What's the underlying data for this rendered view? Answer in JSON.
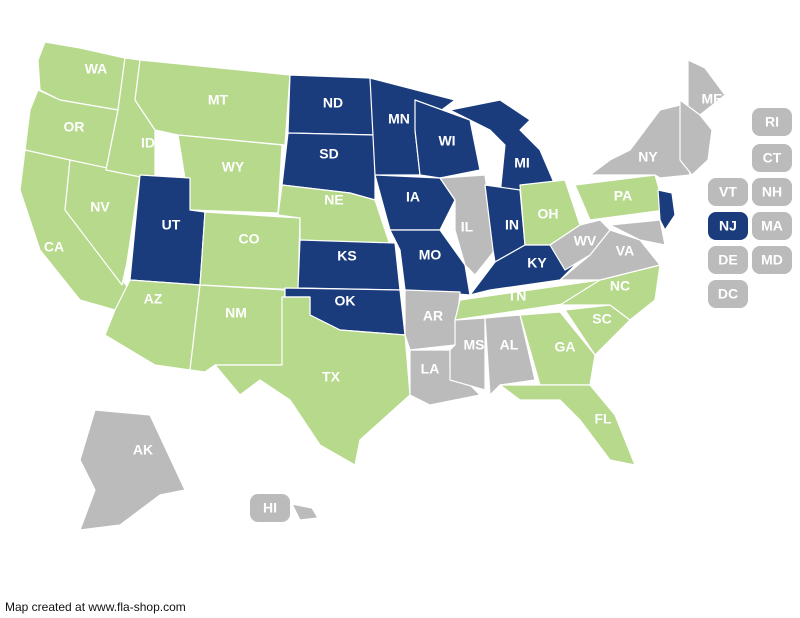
{
  "colors": {
    "blue": "#1a3b7c",
    "green": "#b6d98c",
    "gray": "#bbbbbb"
  },
  "states": [
    {
      "code": "WA",
      "status": "green"
    },
    {
      "code": "OR",
      "status": "green"
    },
    {
      "code": "CA",
      "status": "green"
    },
    {
      "code": "NV",
      "status": "green"
    },
    {
      "code": "ID",
      "status": "green"
    },
    {
      "code": "MT",
      "status": "green"
    },
    {
      "code": "WY",
      "status": "green"
    },
    {
      "code": "UT",
      "status": "blue"
    },
    {
      "code": "AZ",
      "status": "green"
    },
    {
      "code": "CO",
      "status": "green"
    },
    {
      "code": "NM",
      "status": "green"
    },
    {
      "code": "ND",
      "status": "blue"
    },
    {
      "code": "SD",
      "status": "blue"
    },
    {
      "code": "NE",
      "status": "green"
    },
    {
      "code": "KS",
      "status": "blue"
    },
    {
      "code": "OK",
      "status": "blue"
    },
    {
      "code": "TX",
      "status": "green"
    },
    {
      "code": "MN",
      "status": "blue"
    },
    {
      "code": "IA",
      "status": "blue"
    },
    {
      "code": "MO",
      "status": "blue"
    },
    {
      "code": "AR",
      "status": "gray"
    },
    {
      "code": "LA",
      "status": "gray"
    },
    {
      "code": "WI",
      "status": "blue"
    },
    {
      "code": "IL",
      "status": "gray"
    },
    {
      "code": "MI",
      "status": "blue"
    },
    {
      "code": "IN",
      "status": "blue"
    },
    {
      "code": "OH",
      "status": "green"
    },
    {
      "code": "KY",
      "status": "blue"
    },
    {
      "code": "TN",
      "status": "green"
    },
    {
      "code": "MS",
      "status": "gray"
    },
    {
      "code": "AL",
      "status": "gray"
    },
    {
      "code": "GA",
      "status": "green"
    },
    {
      "code": "FL",
      "status": "green"
    },
    {
      "code": "SC",
      "status": "green"
    },
    {
      "code": "NC",
      "status": "green"
    },
    {
      "code": "VA",
      "status": "gray"
    },
    {
      "code": "WV",
      "status": "gray"
    },
    {
      "code": "PA",
      "status": "green"
    },
    {
      "code": "NY",
      "status": "gray"
    },
    {
      "code": "NJ",
      "status": "blue"
    },
    {
      "code": "ME",
      "status": "gray"
    },
    {
      "code": "AK",
      "status": "gray"
    },
    {
      "code": "HI",
      "status": "gray"
    }
  ],
  "small_states": [
    {
      "code": "RI",
      "status": "gray"
    },
    {
      "code": "CT",
      "status": "gray"
    },
    {
      "code": "VT",
      "status": "gray"
    },
    {
      "code": "NH",
      "status": "gray"
    },
    {
      "code": "NJ",
      "status": "blue"
    },
    {
      "code": "MA",
      "status": "gray"
    },
    {
      "code": "DE",
      "status": "gray"
    },
    {
      "code": "MD",
      "status": "gray"
    },
    {
      "code": "DC",
      "status": "gray"
    }
  ],
  "credit": "Map created at www.fla-shop.com"
}
